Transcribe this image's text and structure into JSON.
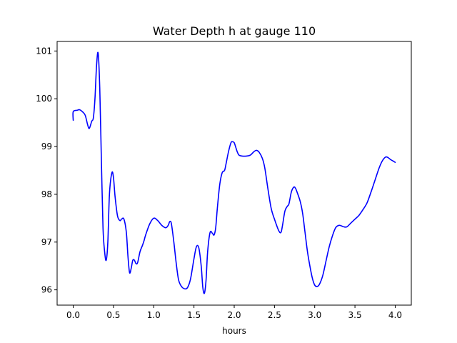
{
  "chart_data": {
    "type": "line",
    "title": "Water Depth h at gauge 110",
    "xlabel": "hours",
    "ylabel": "",
    "xlim": [
      -0.2,
      4.2
    ],
    "ylim": [
      95.68,
      101.2
    ],
    "xticks": [
      0.0,
      0.5,
      1.0,
      1.5,
      2.0,
      2.5,
      3.0,
      3.5,
      4.0
    ],
    "xtick_labels": [
      "0.0",
      "0.5",
      "1.0",
      "1.5",
      "2.0",
      "2.5",
      "3.0",
      "3.5",
      "4.0"
    ],
    "yticks": [
      96,
      97,
      98,
      99,
      100,
      101
    ],
    "ytick_labels": [
      "96",
      "97",
      "98",
      "99",
      "100",
      "101"
    ],
    "grid": false,
    "colors": {
      "line": "#0000ff"
    },
    "series": [
      {
        "x": [
          0.0,
          0.0,
          0.05,
          0.08,
          0.12,
          0.15,
          0.18,
          0.2,
          0.23,
          0.25,
          0.27,
          0.29,
          0.31,
          0.33,
          0.35,
          0.37,
          0.39,
          0.41,
          0.43,
          0.45,
          0.48,
          0.5,
          0.52,
          0.55,
          0.58,
          0.6,
          0.63,
          0.66,
          0.68,
          0.7,
          0.72,
          0.74,
          0.76,
          0.78,
          0.8,
          0.83,
          0.86,
          0.88,
          0.9,
          0.95,
          1.0,
          1.05,
          1.1,
          1.15,
          1.18,
          1.2,
          1.22,
          1.25,
          1.28,
          1.31,
          1.35,
          1.4,
          1.43,
          1.46,
          1.5,
          1.53,
          1.56,
          1.59,
          1.61,
          1.63,
          1.65,
          1.67,
          1.7,
          1.73,
          1.75,
          1.77,
          1.79,
          1.82,
          1.85,
          1.88,
          1.9,
          1.93,
          1.96,
          1.98,
          2.0,
          2.02,
          2.04,
          2.06,
          2.1,
          2.15,
          2.2,
          2.25,
          2.28,
          2.31,
          2.35,
          2.38,
          2.42,
          2.46,
          2.5,
          2.55,
          2.58,
          2.6,
          2.63,
          2.66,
          2.68,
          2.71,
          2.74,
          2.76,
          2.78,
          2.82,
          2.85,
          2.88,
          2.91,
          2.94,
          2.97,
          3.0,
          3.03,
          3.06,
          3.1,
          3.14,
          3.18,
          3.22,
          3.26,
          3.3,
          3.33,
          3.36,
          3.4,
          3.45,
          3.5,
          3.55,
          3.6,
          3.65,
          3.7,
          3.75,
          3.8,
          3.84,
          3.88,
          3.91,
          3.94,
          3.97,
          4.0
        ],
        "values": [
          99.55,
          99.73,
          99.76,
          99.77,
          99.72,
          99.65,
          99.45,
          99.38,
          99.53,
          99.6,
          100.0,
          100.7,
          100.95,
          100.2,
          98.7,
          97.3,
          96.8,
          96.62,
          97.0,
          98.0,
          98.45,
          98.35,
          97.95,
          97.55,
          97.45,
          97.48,
          97.48,
          97.2,
          96.7,
          96.36,
          96.45,
          96.62,
          96.62,
          96.55,
          96.57,
          96.8,
          96.93,
          97.03,
          97.15,
          97.38,
          97.5,
          97.45,
          97.35,
          97.3,
          97.35,
          97.43,
          97.38,
          97.0,
          96.55,
          96.2,
          96.06,
          96.02,
          96.08,
          96.25,
          96.65,
          96.9,
          96.88,
          96.5,
          96.05,
          95.93,
          96.2,
          96.8,
          97.2,
          97.18,
          97.15,
          97.3,
          97.7,
          98.2,
          98.45,
          98.5,
          98.65,
          98.9,
          99.08,
          99.1,
          99.08,
          98.98,
          98.88,
          98.82,
          98.8,
          98.8,
          98.82,
          98.9,
          98.92,
          98.88,
          98.75,
          98.55,
          98.1,
          97.7,
          97.48,
          97.25,
          97.2,
          97.35,
          97.65,
          97.75,
          97.8,
          98.05,
          98.15,
          98.13,
          98.05,
          97.85,
          97.6,
          97.2,
          96.8,
          96.5,
          96.25,
          96.1,
          96.07,
          96.12,
          96.3,
          96.6,
          96.9,
          97.13,
          97.3,
          97.35,
          97.34,
          97.32,
          97.32,
          97.4,
          97.48,
          97.56,
          97.68,
          97.82,
          98.05,
          98.3,
          98.55,
          98.7,
          98.78,
          98.77,
          98.73,
          98.7,
          98.67
        ]
      }
    ]
  }
}
